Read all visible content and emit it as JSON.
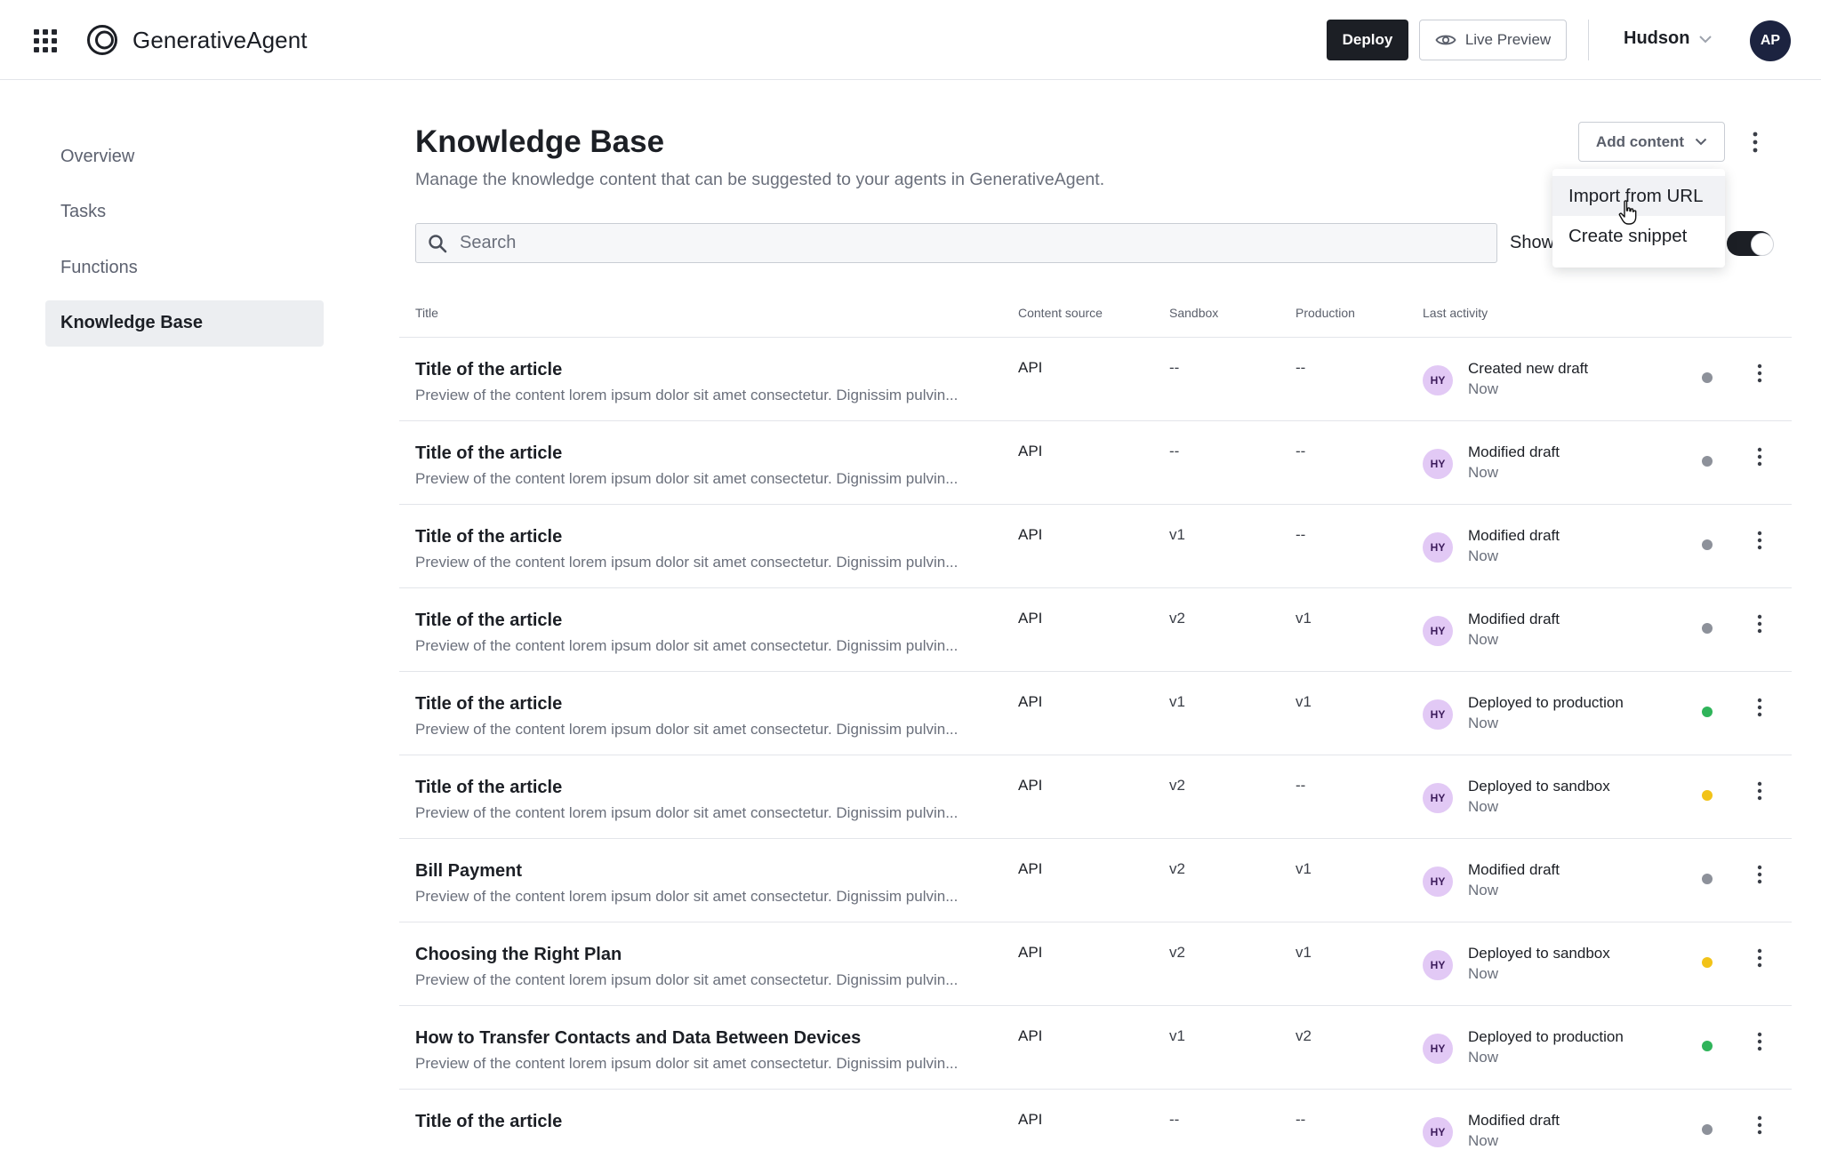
{
  "header": {
    "brand": "GenerativeAgent",
    "deploy_label": "Deploy",
    "preview_label": "Live Preview",
    "org": "Hudson",
    "user_initials": "AP"
  },
  "sidebar": {
    "items": [
      {
        "label": "Overview"
      },
      {
        "label": "Tasks"
      },
      {
        "label": "Functions"
      },
      {
        "label": "Knowledge Base"
      }
    ]
  },
  "page": {
    "title": "Knowledge Base",
    "subtitle": "Manage the knowledge content that can be suggested to your agents in GenerativeAgent.",
    "add_content_label": "Add content",
    "search_placeholder": "Search",
    "show_label": "Show"
  },
  "dropdown": {
    "items": [
      {
        "label": "Import from URL"
      },
      {
        "label": "Create snippet"
      }
    ]
  },
  "table": {
    "columns": {
      "title": "Title",
      "source": "Content source",
      "sandbox": "Sandbox",
      "production": "Production",
      "activity": "Last activity"
    },
    "rows": [
      {
        "title": "Title of the article",
        "preview": "Preview of the content lorem ipsum dolor sit amet consectetur. Dignissim pulvin...",
        "source": "API",
        "sandbox": "--",
        "production": "--",
        "initials": "HY",
        "activity": "Created new draft",
        "time": "Now",
        "status_color": "#8d919a"
      },
      {
        "title": "Title of the article",
        "preview": "Preview of the content lorem ipsum dolor sit amet consectetur. Dignissim pulvin...",
        "source": "API",
        "sandbox": "--",
        "production": "--",
        "initials": "HY",
        "activity": "Modified draft",
        "time": "Now",
        "status_color": "#8d919a"
      },
      {
        "title": "Title of the article",
        "preview": "Preview of the content lorem ipsum dolor sit amet consectetur. Dignissim pulvin...",
        "source": "API",
        "sandbox": "v1",
        "production": "--",
        "initials": "HY",
        "activity": "Modified draft",
        "time": "Now",
        "status_color": "#8d919a"
      },
      {
        "title": "Title of the article",
        "preview": "Preview of the content lorem ipsum dolor sit amet consectetur. Dignissim pulvin...",
        "source": "API",
        "sandbox": "v2",
        "production": "v1",
        "initials": "HY",
        "activity": "Modified draft",
        "time": "Now",
        "status_color": "#8d919a"
      },
      {
        "title": "Title of the article",
        "preview": "Preview of the content lorem ipsum dolor sit amet consectetur. Dignissim pulvin...",
        "source": "API",
        "sandbox": "v1",
        "production": "v1",
        "initials": "HY",
        "activity": "Deployed to production",
        "time": "Now",
        "status_color": "#2fb45a"
      },
      {
        "title": "Title of the article",
        "preview": "Preview of the content lorem ipsum dolor sit amet consectetur. Dignissim pulvin...",
        "source": "API",
        "sandbox": "v2",
        "production": "--",
        "initials": "HY",
        "activity": "Deployed to sandbox",
        "time": "Now",
        "status_color": "#f2c318"
      },
      {
        "title": "Bill Payment",
        "preview": "Preview of the content lorem ipsum dolor sit amet consectetur. Dignissim pulvin...",
        "source": "API",
        "sandbox": "v2",
        "production": "v1",
        "initials": "HY",
        "activity": "Modified draft",
        "time": "Now",
        "status_color": "#8d919a"
      },
      {
        "title": "Choosing the Right Plan",
        "preview": "Preview of the content lorem ipsum dolor sit amet consectetur. Dignissim pulvin...",
        "source": "API",
        "sandbox": "v2",
        "production": "v1",
        "initials": "HY",
        "activity": "Deployed to sandbox",
        "time": "Now",
        "status_color": "#f2c318"
      },
      {
        "title": "How to Transfer Contacts and Data Between Devices",
        "preview": "Preview of the content lorem ipsum dolor sit amet consectetur. Dignissim pulvin...",
        "source": "API",
        "sandbox": "v1",
        "production": "v2",
        "initials": "HY",
        "activity": "Deployed to production",
        "time": "Now",
        "status_color": "#2fb45a"
      },
      {
        "title": "Title of the article",
        "preview": "",
        "source": "API",
        "sandbox": "--",
        "production": "--",
        "initials": "HY",
        "activity": "Modified draft",
        "time": "Now",
        "status_color": "#8d919a"
      }
    ]
  }
}
